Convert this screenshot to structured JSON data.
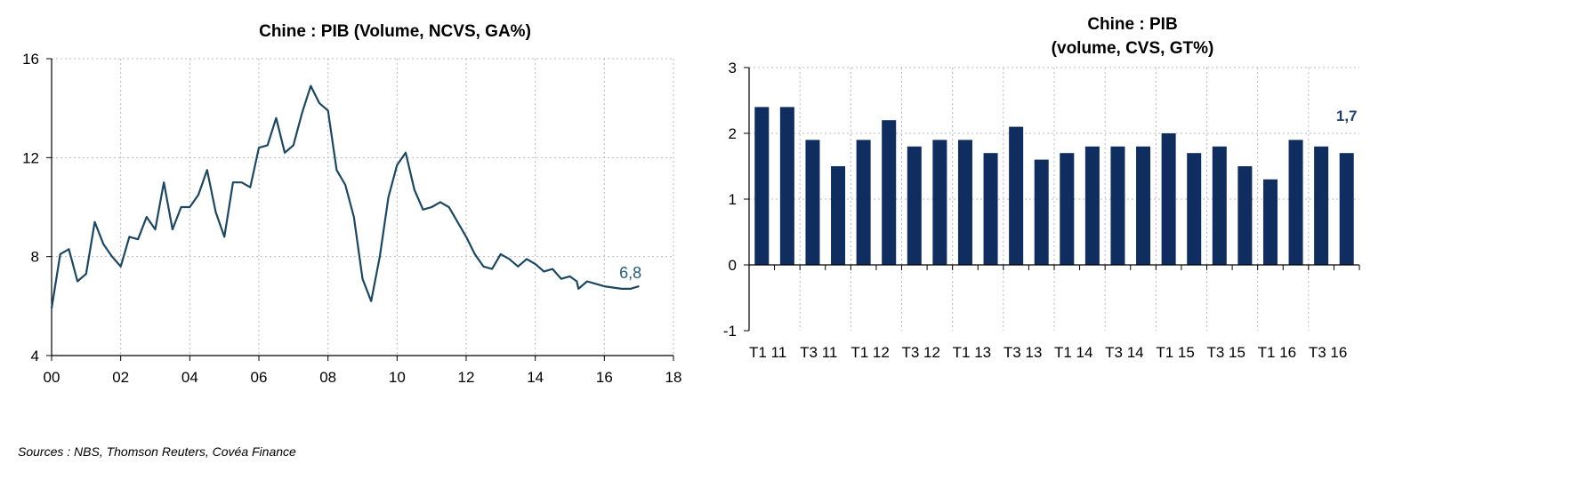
{
  "colors": {
    "line": "#1b4763",
    "bar": "#0f2d5e",
    "annot_line": "#1f5c80",
    "annot_bar": "#1f3f70",
    "grid": "#b9b9b9"
  },
  "source": "Sources : NBS, Thomson Reuters, Covéa Finance",
  "chart_data": [
    {
      "type": "line",
      "title": "Chine : PIB (Volume, NCVS, GA%)",
      "xlim": [
        0,
        18
      ],
      "ylim": [
        4,
        16
      ],
      "xticks": [
        0,
        2,
        4,
        6,
        8,
        10,
        12,
        14,
        16,
        18
      ],
      "xtick_labels": [
        "00",
        "02",
        "04",
        "06",
        "08",
        "10",
        "12",
        "14",
        "16",
        "18"
      ],
      "yticks": [
        4,
        8,
        12,
        16
      ],
      "ytick_labels": [
        "4",
        "8",
        "12",
        "16"
      ],
      "grid": true,
      "last_label": "6,8",
      "series": [
        {
          "x": [
            0.0,
            0.25,
            0.5,
            0.75,
            1.0,
            1.25,
            1.5,
            1.75,
            2.0,
            2.25,
            2.5,
            2.75,
            3.0,
            3.25,
            3.5,
            3.75,
            4.0,
            4.25,
            4.5,
            4.75,
            5.0,
            5.25,
            5.5,
            5.75,
            6.0,
            6.25,
            6.5,
            6.75,
            7.0,
            7.25,
            7.5,
            7.75,
            8.0,
            8.25,
            8.5,
            8.75,
            9.0,
            9.25,
            9.5,
            9.75,
            10.0,
            10.25,
            10.5,
            10.75,
            11.0,
            11.25,
            11.5,
            11.75,
            12.0,
            12.25,
            12.5,
            12.75,
            13.0,
            13.25,
            13.5,
            13.75,
            14.0,
            14.25,
            14.5,
            14.75,
            15.0,
            15.2,
            15.25,
            15.5,
            15.75,
            16.0,
            16.25,
            16.5,
            16.75,
            17.0
          ],
          "y": [
            5.9,
            8.1,
            8.3,
            7.0,
            7.3,
            9.4,
            8.5,
            8.0,
            7.6,
            8.8,
            8.7,
            9.6,
            9.1,
            11.0,
            9.1,
            10.0,
            10.0,
            10.5,
            11.5,
            9.8,
            8.8,
            11.0,
            11.0,
            10.8,
            12.4,
            12.5,
            13.6,
            12.2,
            12.5,
            13.8,
            14.9,
            14.2,
            13.9,
            11.5,
            10.9,
            9.6,
            7.1,
            6.2,
            8.0,
            10.4,
            11.7,
            12.2,
            10.7,
            9.9,
            10.0,
            10.2,
            10.0,
            9.4,
            8.8,
            8.1,
            7.6,
            7.5,
            8.1,
            7.9,
            7.6,
            7.9,
            7.7,
            7.4,
            7.5,
            7.1,
            7.2,
            7.0,
            6.7,
            7.0,
            6.9,
            6.8,
            6.75,
            6.7,
            6.7,
            6.8
          ]
        }
      ]
    },
    {
      "type": "bar",
      "title_lines": [
        "Chine : PIB",
        "(volume, CVS, GT%)"
      ],
      "ylim": [
        -1,
        3
      ],
      "yticks": [
        -1,
        0,
        1,
        2,
        3
      ],
      "ytick_labels": [
        "-1",
        "0",
        "1",
        "2",
        "3"
      ],
      "categories": [
        "T1 11",
        "T2 11",
        "T3 11",
        "T4 11",
        "T1 12",
        "T2 12",
        "T3 12",
        "T4 12",
        "T1 13",
        "T2 13",
        "T3 13",
        "T4 13",
        "T1 14",
        "T2 14",
        "T3 14",
        "T4 14",
        "T1 15",
        "T2 15",
        "T3 15",
        "T4 15",
        "T1 16",
        "T2 16",
        "T3 16",
        "T4 16"
      ],
      "shown_labels": [
        "T1 11",
        "",
        "T3 11",
        "",
        "T1 12",
        "",
        "T3 12",
        "",
        "T1 13",
        "",
        "T3 13",
        "",
        "T1 14",
        "",
        "T3 14",
        "",
        "T1 15",
        "",
        "T3 15",
        "",
        "T1 16",
        "",
        "T3 16",
        ""
      ],
      "values": [
        2.4,
        2.4,
        1.9,
        1.5,
        1.9,
        2.2,
        1.8,
        1.9,
        1.9,
        1.7,
        2.1,
        1.6,
        1.7,
        1.8,
        1.8,
        1.8,
        2.0,
        1.7,
        1.8,
        1.5,
        1.3,
        1.9,
        1.8,
        1.7
      ],
      "grid": true,
      "last_label": "1,7"
    }
  ]
}
